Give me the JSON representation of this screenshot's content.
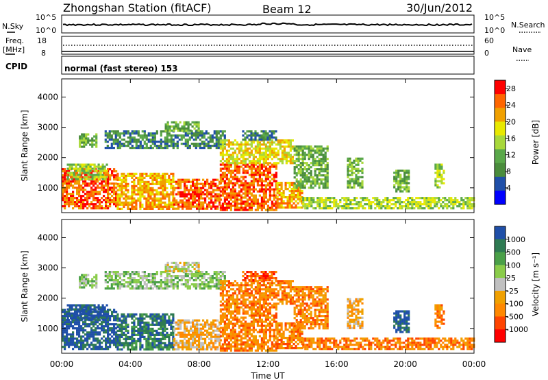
{
  "header": {
    "station": "Zhongshan Station (fitACF)",
    "beam": "Beam 12",
    "date": "30/Jun/2012"
  },
  "status": {
    "nsky_label": "N.Sky",
    "nsky_ticks": [
      "10^5",
      "10^0"
    ],
    "nsearch_label": "N.Search",
    "nsearch_ticks": [
      "10^5",
      "10^0"
    ],
    "freq_label": "Freq.",
    "freq_unit": "[MHz]",
    "freq_ticks": [
      "18",
      "8"
    ],
    "nave_label": "Nave",
    "nave_ticks": [
      "60",
      "0"
    ],
    "cpid_label": "CPID",
    "cpid_value": "normal (fast stereo) 153"
  },
  "colors": {
    "power": [
      "#0000ff",
      "#1f4fa8",
      "#4a8c3c",
      "#5aa84a",
      "#a8d83a",
      "#e8e800",
      "#f0a000",
      "#ff6600",
      "#ff0000"
    ],
    "velocity": [
      "#1f4fa8",
      "#2e7a52",
      "#4aa048",
      "#8acc4a",
      "#c0c0c0",
      "#f0a000",
      "#ff8800",
      "#ff4400",
      "#ff0000"
    ]
  },
  "chart_data": [
    {
      "type": "heatmap",
      "name": "power",
      "xlabel": "",
      "ylabel": "Slant Range [km]",
      "xlim_hours": [
        0,
        24
      ],
      "ylim": [
        180,
        4600
      ],
      "yticks": [
        "1000",
        "2000",
        "3000",
        "4000"
      ],
      "colorbar": {
        "label": "Power [dB]",
        "ticks": [
          "4",
          "8",
          "12",
          "16",
          "20",
          "24",
          "28"
        ],
        "range": [
          0,
          30
        ]
      },
      "regions": [
        {
          "t0": 0.0,
          "t1": 3.2,
          "r0": 300,
          "r1": 1650,
          "v": 27
        },
        {
          "t0": 3.2,
          "t1": 6.5,
          "r0": 300,
          "r1": 1500,
          "v": 24
        },
        {
          "t0": 6.5,
          "t1": 9.2,
          "r0": 300,
          "r1": 1300,
          "v": 25
        },
        {
          "t0": 9.2,
          "t1": 12.5,
          "r0": 300,
          "r1": 1800,
          "v": 27
        },
        {
          "t0": 12.5,
          "t1": 14.0,
          "r0": 350,
          "r1": 1200,
          "v": 22
        },
        {
          "t0": 14.0,
          "t1": 24.0,
          "r0": 300,
          "r1": 700,
          "v": 15
        },
        {
          "t0": 0.3,
          "t1": 2.6,
          "r0": 1300,
          "r1": 1800,
          "v": 14
        },
        {
          "t0": 1.0,
          "t1": 2.0,
          "r0": 2350,
          "r1": 2800,
          "v": 12
        },
        {
          "t0": 2.5,
          "t1": 9.5,
          "r0": 2300,
          "r1": 2900,
          "v": 8
        },
        {
          "t0": 6.0,
          "t1": 8.0,
          "r0": 2900,
          "r1": 3200,
          "v": 11
        },
        {
          "t0": 9.2,
          "t1": 13.5,
          "r0": 1800,
          "r1": 2600,
          "v": 20
        },
        {
          "t0": 10.5,
          "t1": 12.5,
          "r0": 2600,
          "r1": 2900,
          "v": 6
        },
        {
          "t0": 13.5,
          "t1": 15.5,
          "r0": 1000,
          "r1": 2400,
          "v": 12
        },
        {
          "t0": 16.6,
          "t1": 17.5,
          "r0": 1000,
          "r1": 2000,
          "v": 13
        },
        {
          "t0": 19.3,
          "t1": 20.2,
          "r0": 900,
          "r1": 1600,
          "v": 11
        },
        {
          "t0": 21.7,
          "t1": 22.2,
          "r0": 1000,
          "r1": 1800,
          "v": 16
        }
      ]
    },
    {
      "type": "heatmap",
      "name": "velocity",
      "xlabel": "Time UT",
      "ylabel": "Slant Range [km]",
      "xlim_hours": [
        0,
        24
      ],
      "xticks": [
        "00:00",
        "04:00",
        "08:00",
        "12:00",
        "16:00",
        "20:00",
        "00:00"
      ],
      "ylim": [
        180,
        4600
      ],
      "yticks": [
        "1000",
        "2000",
        "3000",
        "4000"
      ],
      "colorbar": {
        "label": "Velocity [m s⁻¹]",
        "ticks": [
          "1000",
          "500",
          "100",
          "25",
          "-25",
          "-100",
          "-500",
          "-1000"
        ]
      },
      "regions": [
        {
          "t0": 0.0,
          "t1": 3.2,
          "r0": 300,
          "r1": 1650,
          "v": 0
        },
        {
          "t0": 3.2,
          "t1": 6.5,
          "r0": 300,
          "r1": 1500,
          "v": 1
        },
        {
          "t0": 6.5,
          "t1": 9.2,
          "r0": 300,
          "r1": 1300,
          "v": 5
        },
        {
          "t0": 9.2,
          "t1": 12.5,
          "r0": 300,
          "r1": 1800,
          "v": 6
        },
        {
          "t0": 12.5,
          "t1": 14.0,
          "r0": 350,
          "r1": 1200,
          "v": 6
        },
        {
          "t0": 14.0,
          "t1": 24.0,
          "r0": 300,
          "r1": 700,
          "v": 6
        },
        {
          "t0": 0.3,
          "t1": 2.6,
          "r0": 1300,
          "r1": 1800,
          "v": 0
        },
        {
          "t0": 1.0,
          "t1": 2.0,
          "r0": 2350,
          "r1": 2800,
          "v": 3
        },
        {
          "t0": 2.5,
          "t1": 9.5,
          "r0": 2300,
          "r1": 2900,
          "v": 3
        },
        {
          "t0": 6.0,
          "t1": 8.0,
          "r0": 2900,
          "r1": 3200,
          "v": 4
        },
        {
          "t0": 9.2,
          "t1": 13.5,
          "r0": 1800,
          "r1": 2600,
          "v": 6
        },
        {
          "t0": 10.5,
          "t1": 12.5,
          "r0": 2600,
          "r1": 2900,
          "v": 7
        },
        {
          "t0": 13.5,
          "t1": 15.5,
          "r0": 1000,
          "r1": 2400,
          "v": 6
        },
        {
          "t0": 16.6,
          "t1": 17.5,
          "r0": 1000,
          "r1": 2000,
          "v": 5
        },
        {
          "t0": 19.3,
          "t1": 20.2,
          "r0": 900,
          "r1": 1600,
          "v": 0
        },
        {
          "t0": 21.7,
          "t1": 22.2,
          "r0": 1000,
          "r1": 1800,
          "v": 6
        }
      ]
    }
  ]
}
